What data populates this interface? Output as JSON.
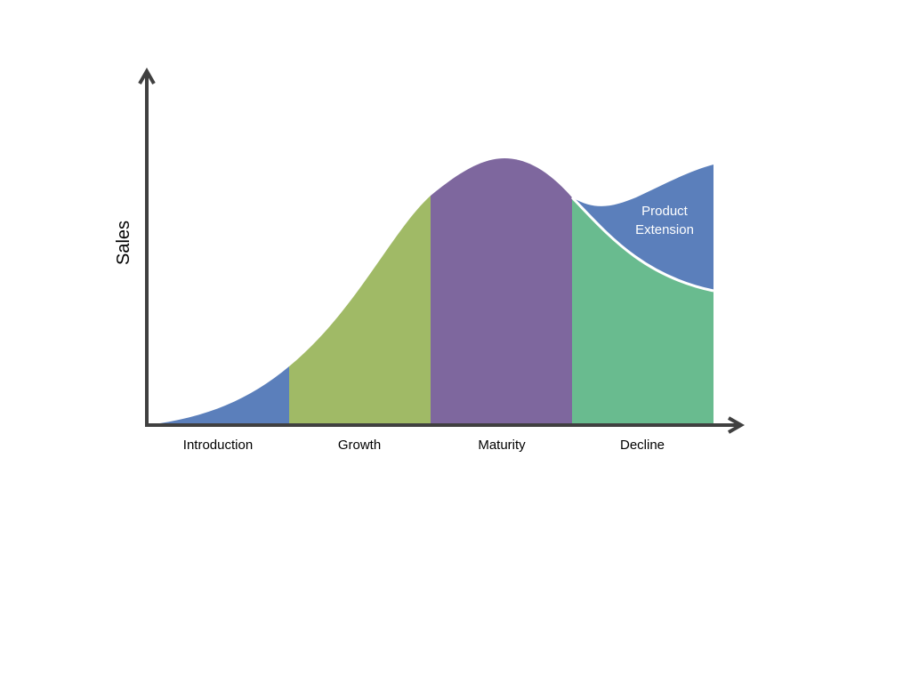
{
  "diagram": {
    "y_axis_label": "Sales",
    "stages": [
      {
        "name": "Introduction",
        "color": "#5B7FBB"
      },
      {
        "name": "Growth",
        "color": "#A0BA66"
      },
      {
        "name": "Maturity",
        "color": "#7E679E"
      },
      {
        "name": "Decline",
        "color": "#69BB8F"
      }
    ],
    "extension": {
      "label_line1": "Product",
      "label_line2": "Extension",
      "color": "#5B7FBB"
    },
    "axis_color": "#404040"
  }
}
